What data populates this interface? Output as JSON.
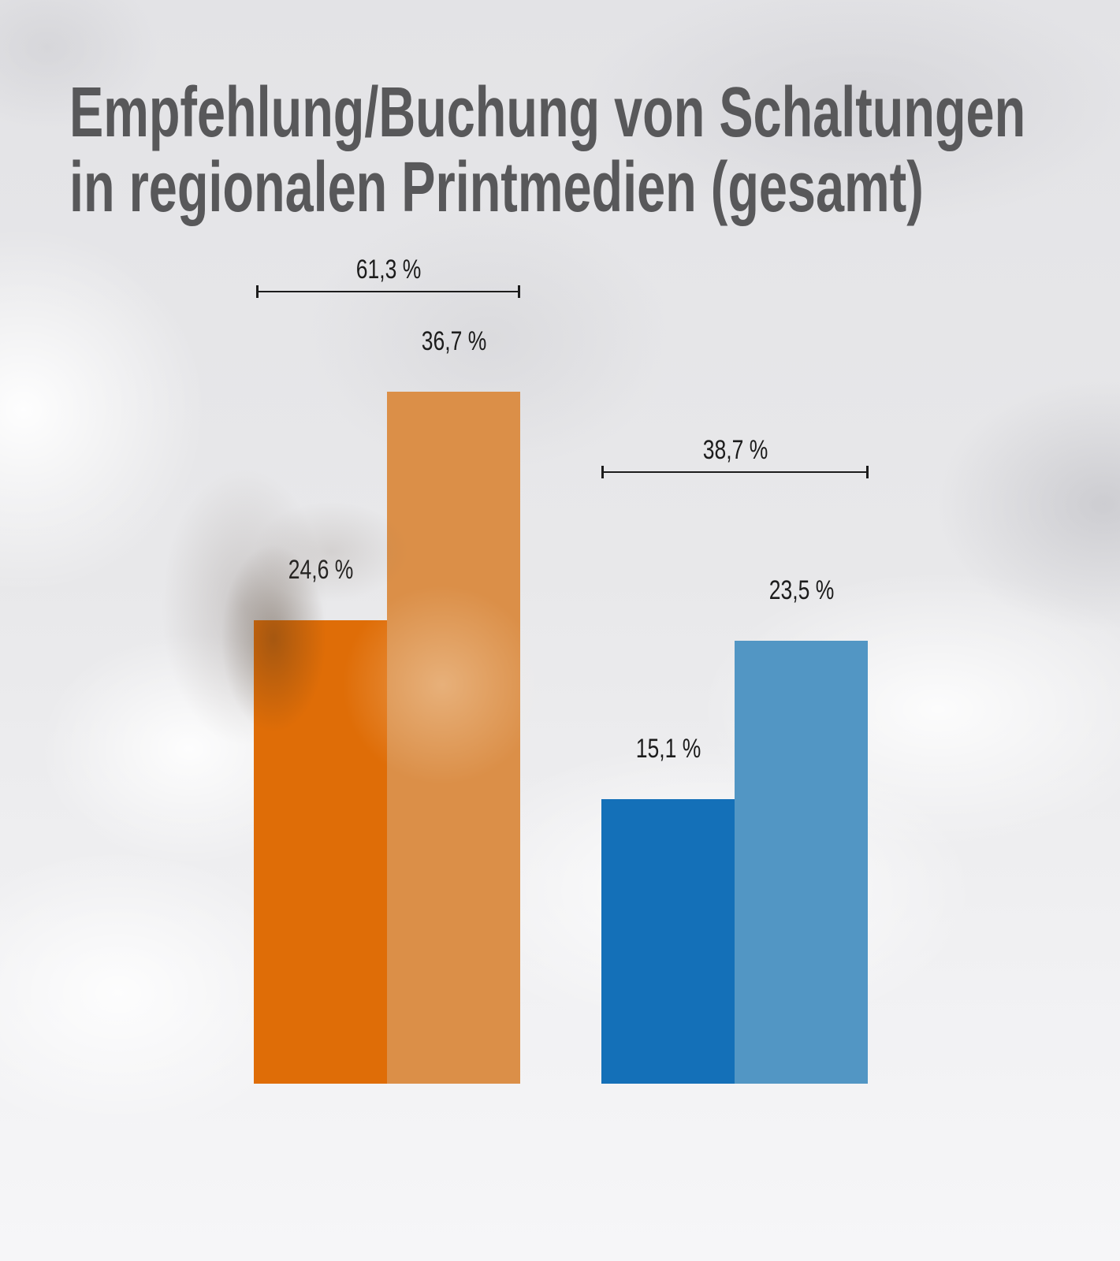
{
  "title": {
    "lines": [
      "Empfehlung/Buchung von Schaltungen",
      "in regionalen Printmedien (gesamt)"
    ],
    "color": "#58585a"
  },
  "chart_data": {
    "type": "bar",
    "title": "Empfehlung/Buchung von Schaltungen in regionalen Printmedien (gesamt)",
    "unit": "%",
    "decimal_separator": ",",
    "axes_visible": false,
    "legend_visible": false,
    "groups": [
      {
        "total_label": "61,3 %",
        "total_value": 61.3,
        "bars": [
          {
            "label": "24,6 %",
            "value": 24.6,
            "color": "#df6d07"
          },
          {
            "label": "36,7 %",
            "value": 36.7,
            "color": "#db8f48"
          }
        ]
      },
      {
        "total_label": "38,7 %",
        "total_value": 38.7,
        "bars": [
          {
            "label": "15,1 %",
            "value": 15.1,
            "color": "#1470b8"
          },
          {
            "label": "23,5 %",
            "value": 23.5,
            "color": "#5296c4"
          }
        ]
      }
    ]
  },
  "colors": {
    "label_text": "#1c1c1c",
    "bracket": "#1c1c1c",
    "background_base": "#e9e9eb"
  }
}
